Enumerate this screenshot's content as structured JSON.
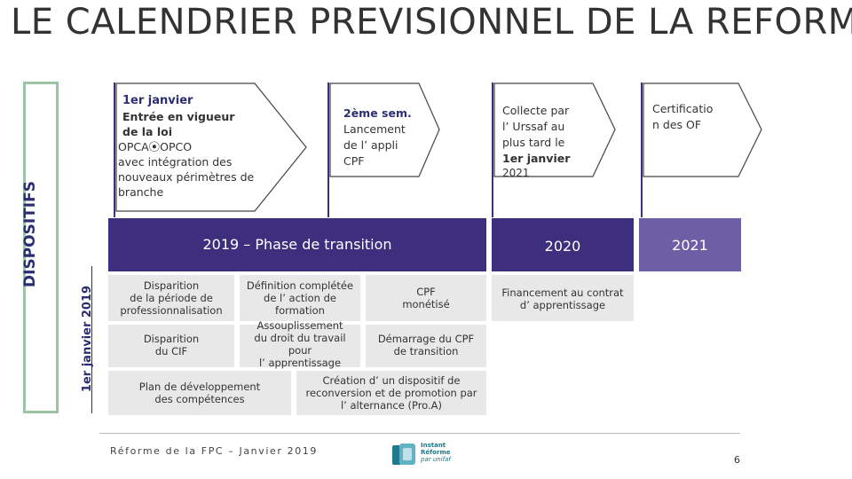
{
  "slide": {
    "title": "LE CALENDRIER PREVISIONNEL DE LA REFORME",
    "side_label": "DISPOSITIFS",
    "side_sublabel": "1er janvier 2019"
  },
  "callouts": [
    {
      "head": "1er janvier",
      "lines": [
        "Entrée en vigueur",
        "de la loi",
        "OPCA⦿OPCO",
        "avec intégration des",
        "nouveaux périmètres de",
        "branche"
      ]
    },
    {
      "head": "2ème sem.",
      "lines": [
        "Lancement",
        "de l’ appli",
        "CPF"
      ]
    },
    {
      "head": "Collecte par",
      "lines": [
        "l’ Urssaf au",
        "plus tard le",
        "1er janvier",
        "2021"
      ]
    },
    {
      "head": "Certificatio",
      "lines": [
        "n des OF"
      ]
    }
  ],
  "phases": {
    "p2019": "2019 – Phase de transition",
    "p2020": "2020",
    "p2021": "2021"
  },
  "cells": {
    "c1": "Disparition\nde la période de\nprofessionnalisation",
    "c2": "Définition complétée\nde l’ action de\nformation",
    "c3": "CPF\nmonétisé",
    "c4": "Disparition\ndu CIF",
    "c5": "Assouplissement\ndu droit du travail\npour\nl’ apprentissage",
    "c6": "Démarrage du CPF\nde transition",
    "c7": "Plan de développement\ndes compétences",
    "c8": "Création d’ un dispositif de\nreconversion et de promotion par\nl’ alternance (Pro.A)",
    "c9": "Financement au contrat\nd’ apprentissage"
  },
  "footer": {
    "text": "Réforme de la FPC – Janvier 2019",
    "page": "6",
    "logo": [
      "Instant",
      "Réforme",
      "par unifaf"
    ]
  },
  "colors": {
    "purple_dark": "#3d2f7d",
    "purple_light": "#6d5fa6",
    "navy_text": "#2d2d73",
    "teal": "#1e7a8c",
    "green_border": "#9dc3a7",
    "grey_cell": "#e8e8e8"
  }
}
